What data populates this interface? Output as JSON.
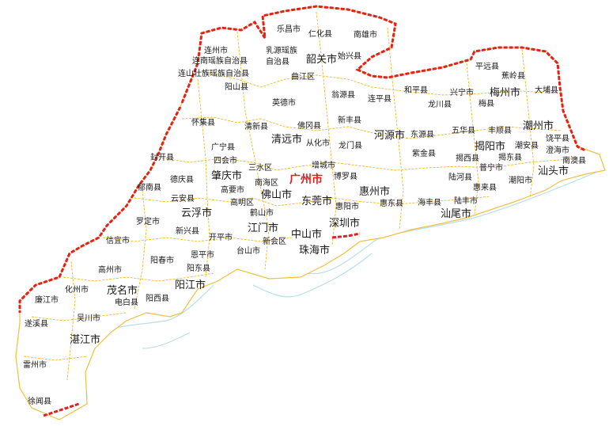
{
  "map": {
    "capital": "广州市",
    "places": [
      {
        "id": "lechang",
        "name": "乐昌市",
        "type": "minor"
      },
      {
        "id": "renhua",
        "name": "仁化县",
        "type": "minor"
      },
      {
        "id": "nanxiong",
        "name": "南雄市",
        "type": "minor"
      },
      {
        "id": "lianzhou",
        "name": "连州市",
        "type": "minor"
      },
      {
        "id": "ruyuan",
        "name": "乳源瑶族",
        "type": "minor"
      },
      {
        "id": "ruyuan2",
        "name": "自治县",
        "type": "minor"
      },
      {
        "id": "shaoguan",
        "name": "韶关市",
        "type": "major"
      },
      {
        "id": "shixing",
        "name": "始兴县",
        "type": "minor"
      },
      {
        "id": "liannan",
        "name": "连南瑶族自治县",
        "type": "minor"
      },
      {
        "id": "lianshan",
        "name": "连山壮族瑶族自治县",
        "type": "minor"
      },
      {
        "id": "qujiang",
        "name": "曲江区",
        "type": "minor"
      },
      {
        "id": "yangshan",
        "name": "阳山县",
        "type": "minor"
      },
      {
        "id": "yingde",
        "name": "英德市",
        "type": "minor"
      },
      {
        "id": "wengyuan",
        "name": "翁源县",
        "type": "minor"
      },
      {
        "id": "lianping",
        "name": "连平县",
        "type": "minor"
      },
      {
        "id": "heping",
        "name": "和平县",
        "type": "minor"
      },
      {
        "id": "longchuan",
        "name": "龙川县",
        "type": "minor"
      },
      {
        "id": "xingning",
        "name": "兴宁市",
        "type": "minor"
      },
      {
        "id": "pingyuan",
        "name": "平远县",
        "type": "minor"
      },
      {
        "id": "jiaoling",
        "name": "蕉岭县",
        "type": "minor"
      },
      {
        "id": "meixian",
        "name": "梅县",
        "type": "minor"
      },
      {
        "id": "meizhou",
        "name": "梅州市",
        "type": "major"
      },
      {
        "id": "dabu",
        "name": "大埔县",
        "type": "minor"
      },
      {
        "id": "huaiji",
        "name": "怀集县",
        "type": "minor"
      },
      {
        "id": "qingxin",
        "name": "清新县",
        "type": "minor"
      },
      {
        "id": "fogang",
        "name": "佛冈县",
        "type": "minor"
      },
      {
        "id": "xinfeng",
        "name": "新丰县",
        "type": "minor"
      },
      {
        "id": "heyuan",
        "name": "河源市",
        "type": "major"
      },
      {
        "id": "dongyuan",
        "name": "东源县",
        "type": "minor"
      },
      {
        "id": "wuhua",
        "name": "五华县",
        "type": "minor"
      },
      {
        "id": "fengshun",
        "name": "丰顺县",
        "type": "minor"
      },
      {
        "id": "chaozhou",
        "name": "潮州市",
        "type": "major"
      },
      {
        "id": "raoping",
        "name": "饶平县",
        "type": "minor"
      },
      {
        "id": "qingyuan",
        "name": "清远市",
        "type": "major"
      },
      {
        "id": "conghua",
        "name": "从化市",
        "type": "minor"
      },
      {
        "id": "longmen",
        "name": "龙门县",
        "type": "minor"
      },
      {
        "id": "jieyang",
        "name": "揭阳市",
        "type": "major"
      },
      {
        "id": "chaoan",
        "name": "潮安县",
        "type": "minor"
      },
      {
        "id": "chenghai",
        "name": "澄海市",
        "type": "minor"
      },
      {
        "id": "guangning",
        "name": "广宁县",
        "type": "minor"
      },
      {
        "id": "zijin",
        "name": "紫金县",
        "type": "minor"
      },
      {
        "id": "jiexi",
        "name": "揭西县",
        "type": "minor"
      },
      {
        "id": "jiedong",
        "name": "揭东县",
        "type": "minor"
      },
      {
        "id": "shantou",
        "name": "汕头市",
        "type": "major"
      },
      {
        "id": "nanao",
        "name": "南澳县",
        "type": "minor"
      },
      {
        "id": "fengkai",
        "name": "封开县",
        "type": "minor"
      },
      {
        "id": "sihui",
        "name": "四会市",
        "type": "minor"
      },
      {
        "id": "zengcheng",
        "name": "增城市",
        "type": "minor"
      },
      {
        "id": "puning",
        "name": "普宁市",
        "type": "minor"
      },
      {
        "id": "sanshui",
        "name": "三水区",
        "type": "minor"
      },
      {
        "id": "zhaoqing",
        "name": "肇庆市",
        "type": "major"
      },
      {
        "id": "guangzhou",
        "name": "广州市",
        "type": "capital"
      },
      {
        "id": "lufeng",
        "name": "陆河县",
        "type": "minor"
      },
      {
        "id": "deqing",
        "name": "德庆县",
        "type": "minor"
      },
      {
        "id": "boluo",
        "name": "博罗县",
        "type": "minor"
      },
      {
        "id": "huilai",
        "name": "惠来县",
        "type": "minor"
      },
      {
        "id": "chaoyang",
        "name": "潮阳市",
        "type": "minor"
      },
      {
        "id": "nanhai",
        "name": "南海区",
        "type": "minor"
      },
      {
        "id": "gaoyao",
        "name": "高要市",
        "type": "minor"
      },
      {
        "id": "huizhou",
        "name": "惠州市",
        "type": "major"
      },
      {
        "id": "yunan",
        "name": "郁南县",
        "type": "minor"
      },
      {
        "id": "foshan",
        "name": "佛山市",
        "type": "major"
      },
      {
        "id": "dongguan",
        "name": "东莞市",
        "type": "major"
      },
      {
        "id": "huiyang",
        "name": "惠阳市",
        "type": "minor"
      },
      {
        "id": "huidong",
        "name": "惠东县",
        "type": "minor"
      },
      {
        "id": "haifeng",
        "name": "海丰县",
        "type": "minor"
      },
      {
        "id": "lufengshi",
        "name": "陆丰市",
        "type": "minor"
      },
      {
        "id": "yunan2",
        "name": "云安县",
        "type": "minor"
      },
      {
        "id": "gaoming",
        "name": "高明区",
        "type": "minor"
      },
      {
        "id": "shanwei",
        "name": "汕尾市",
        "type": "major"
      },
      {
        "id": "yunfu",
        "name": "云浮市",
        "type": "major"
      },
      {
        "id": "heshan",
        "name": "鹤山市",
        "type": "minor"
      },
      {
        "id": "luoding",
        "name": "罗定市",
        "type": "minor"
      },
      {
        "id": "shenzhen",
        "name": "深圳市",
        "type": "major"
      },
      {
        "id": "jiangmen",
        "name": "江门市",
        "type": "major"
      },
      {
        "id": "xinxing",
        "name": "新兴县",
        "type": "minor"
      },
      {
        "id": "zhongshan",
        "name": "中山市",
        "type": "major"
      },
      {
        "id": "kaiping",
        "name": "开平市",
        "type": "minor"
      },
      {
        "id": "xinyi",
        "name": "信宜市",
        "type": "minor"
      },
      {
        "id": "xinhui",
        "name": "新会区",
        "type": "minor"
      },
      {
        "id": "taishan",
        "name": "台山市",
        "type": "minor"
      },
      {
        "id": "zhuhai",
        "name": "珠海市",
        "type": "major"
      },
      {
        "id": "enping",
        "name": "恩平市",
        "type": "minor"
      },
      {
        "id": "yangchun",
        "name": "阳春市",
        "type": "minor"
      },
      {
        "id": "gaozhou",
        "name": "高州市",
        "type": "minor"
      },
      {
        "id": "yangdong",
        "name": "阳东县",
        "type": "minor"
      },
      {
        "id": "yangjiang",
        "name": "阳江市",
        "type": "major"
      },
      {
        "id": "huazhou",
        "name": "化州市",
        "type": "minor"
      },
      {
        "id": "maoming",
        "name": "茂名市",
        "type": "major"
      },
      {
        "id": "lianjiang",
        "name": "廉江市",
        "type": "minor"
      },
      {
        "id": "dianbai",
        "name": "电白县",
        "type": "minor"
      },
      {
        "id": "yangxi",
        "name": "阳西县",
        "type": "minor"
      },
      {
        "id": "wuchuan",
        "name": "吴川市",
        "type": "minor"
      },
      {
        "id": "suixi",
        "name": "遂溪县",
        "type": "minor"
      },
      {
        "id": "zhanjiang",
        "name": "湛江市",
        "type": "major"
      },
      {
        "id": "leizhou",
        "name": "雷州市",
        "type": "minor"
      },
      {
        "id": "xuwen",
        "name": "徐闻县",
        "type": "minor"
      }
    ]
  }
}
